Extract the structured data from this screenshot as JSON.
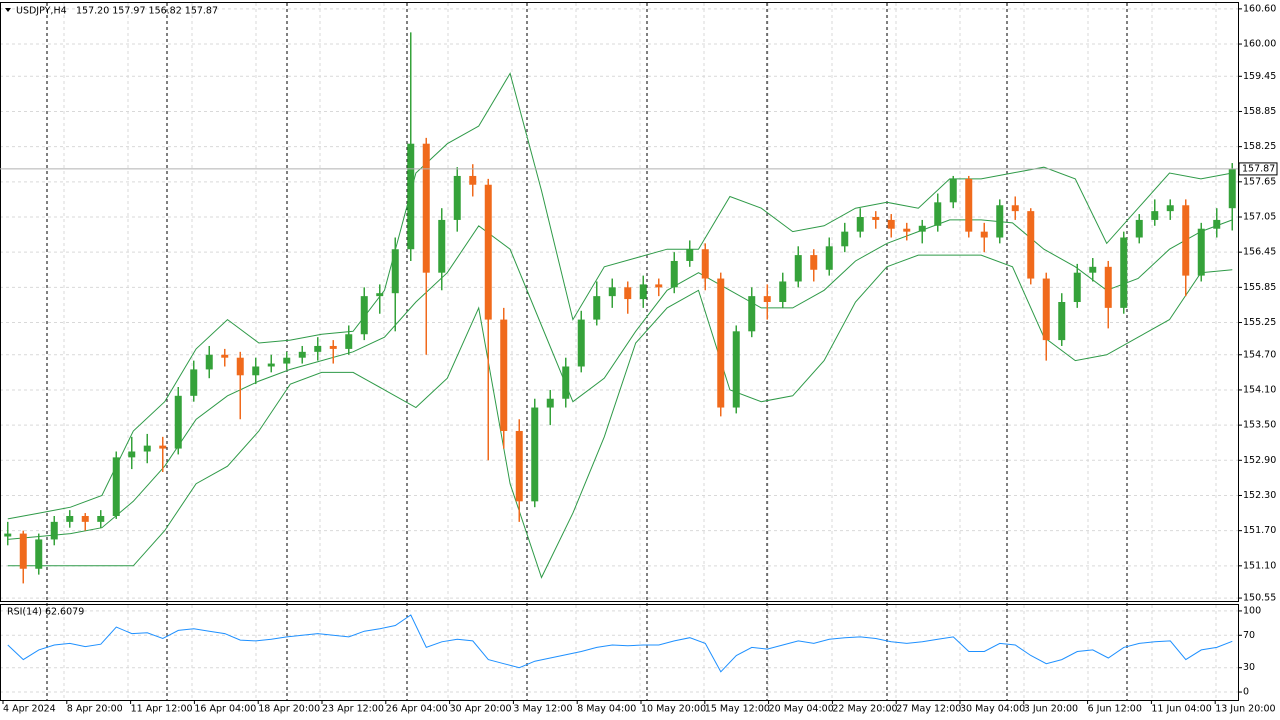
{
  "chart_data": [
    {
      "type": "candlestick",
      "title": "USDJPY,H4",
      "subtitle": "157.20 157.97 156.82 157.87",
      "bull_color": "#35a23a",
      "bear_color": "#f06a1c",
      "grid": true,
      "ylim": [
        150.5,
        160.7
      ],
      "yticks": [
        {
          "value": 160.6,
          "label": "160.60"
        },
        {
          "value": 160,
          "label": "160.00"
        },
        159.45,
        158.85,
        158.25,
        157.65,
        157.05,
        156.45,
        155.85,
        155.25,
        {
          "value": 154.7,
          "label": "154.70"
        },
        {
          "value": 154.1,
          "label": "154.10"
        },
        {
          "value": 153.5,
          "label": "153.50"
        },
        {
          "value": 152.9,
          "label": "152.90"
        },
        {
          "value": 152.3,
          "label": "152.30"
        },
        {
          "value": 151.7,
          "label": "151.70"
        },
        {
          "value": 151.1,
          "label": "151.10"
        },
        150.55
      ],
      "last_price": {
        "value": 157.87,
        "label": "157.87"
      },
      "xtick_labels": [
        "4 Apr 2024",
        "8 Apr 20:00",
        "11 Apr 12:00",
        "16 Apr 04:00",
        "18 Apr 20:00",
        "23 Apr 12:00",
        "26 Apr 04:00",
        "30 Apr 20:00",
        "3 May 12:00",
        "8 May 04:00",
        "10 May 20:00",
        "15 May 12:00",
        "20 May 04:00",
        "22 May 20:00",
        "27 May 12:00",
        "30 May 04:00",
        "3 Jun 20:00",
        "6 Jun 12:00",
        "11 Jun 04:00",
        "13 Jun 20:00"
      ],
      "ohlc": [
        [
          151.6,
          151.85,
          151.45,
          151.65
        ],
        [
          151.65,
          151.7,
          150.8,
          151.05
        ],
        [
          151.05,
          151.65,
          150.95,
          151.55
        ],
        [
          151.55,
          151.95,
          151.45,
          151.85
        ],
        [
          151.85,
          152.05,
          151.75,
          151.95
        ],
        [
          151.95,
          152.0,
          151.7,
          151.85
        ],
        [
          151.85,
          152.05,
          151.75,
          151.95
        ],
        [
          151.95,
          153.05,
          151.9,
          152.95
        ],
        [
          152.95,
          153.3,
          152.75,
          153.05
        ],
        [
          153.05,
          153.35,
          152.85,
          153.15
        ],
        [
          153.15,
          153.3,
          152.7,
          153.1
        ],
        [
          153.1,
          154.15,
          153.0,
          154.0
        ],
        [
          154.0,
          154.6,
          153.9,
          154.45
        ],
        [
          154.45,
          154.85,
          154.3,
          154.7
        ],
        [
          154.7,
          154.8,
          154.5,
          154.65
        ],
        [
          154.65,
          154.75,
          153.6,
          154.35
        ],
        [
          154.35,
          154.65,
          154.2,
          154.5
        ],
        [
          154.5,
          154.7,
          154.4,
          154.55
        ],
        [
          154.55,
          154.75,
          154.45,
          154.65
        ],
        [
          154.65,
          154.85,
          154.55,
          154.75
        ],
        [
          154.75,
          155.0,
          154.6,
          154.85
        ],
        [
          154.85,
          154.95,
          154.55,
          154.8
        ],
        [
          154.8,
          155.2,
          154.7,
          155.05
        ],
        [
          155.05,
          155.85,
          154.95,
          155.7
        ],
        [
          155.7,
          155.9,
          155.4,
          155.75
        ],
        [
          155.75,
          156.7,
          155.1,
          156.5
        ],
        [
          156.5,
          160.2,
          156.3,
          158.3
        ],
        [
          158.3,
          158.4,
          154.7,
          156.1
        ],
        [
          156.1,
          157.2,
          155.8,
          157.0
        ],
        [
          157.0,
          157.9,
          156.8,
          157.75
        ],
        [
          157.75,
          157.95,
          157.4,
          157.6
        ],
        [
          157.6,
          157.7,
          152.9,
          155.3
        ],
        [
          155.3,
          155.5,
          153.1,
          153.4
        ],
        [
          153.4,
          153.6,
          151.85,
          152.2
        ],
        [
          152.2,
          153.95,
          152.1,
          153.8
        ],
        [
          153.8,
          154.1,
          153.5,
          153.95
        ],
        [
          153.95,
          154.65,
          153.8,
          154.5
        ],
        [
          154.5,
          155.45,
          154.4,
          155.3
        ],
        [
          155.3,
          155.95,
          155.2,
          155.7
        ],
        [
          155.7,
          156.0,
          155.5,
          155.85
        ],
        [
          155.85,
          155.95,
          155.4,
          155.65
        ],
        [
          155.65,
          156.05,
          155.5,
          155.9
        ],
        [
          155.9,
          156.0,
          155.7,
          155.85
        ],
        [
          155.85,
          156.45,
          155.75,
          156.3
        ],
        [
          156.3,
          156.65,
          156.2,
          156.5
        ],
        [
          156.5,
          156.6,
          155.8,
          156.0
        ],
        [
          156.0,
          156.1,
          153.65,
          153.8
        ],
        [
          153.8,
          155.2,
          153.7,
          155.1
        ],
        [
          155.1,
          155.85,
          155.0,
          155.7
        ],
        [
          155.7,
          155.9,
          155.3,
          155.6
        ],
        [
          155.6,
          156.1,
          155.5,
          155.95
        ],
        [
          155.95,
          156.55,
          155.85,
          156.4
        ],
        [
          156.4,
          156.5,
          155.95,
          156.15
        ],
        [
          156.15,
          156.7,
          156.05,
          156.55
        ],
        [
          156.55,
          156.95,
          156.45,
          156.8
        ],
        [
          156.8,
          157.2,
          156.7,
          157.05
        ],
        [
          157.05,
          157.15,
          156.85,
          157.0
        ],
        [
          157.0,
          157.1,
          156.7,
          156.85
        ],
        [
          156.85,
          156.95,
          156.65,
          156.8
        ],
        [
          156.8,
          157.0,
          156.6,
          156.9
        ],
        [
          156.9,
          157.45,
          156.8,
          157.3
        ],
        [
          157.3,
          157.75,
          157.2,
          157.7
        ],
        [
          157.7,
          157.75,
          156.7,
          156.8
        ],
        [
          156.8,
          156.95,
          156.45,
          156.7
        ],
        [
          156.7,
          157.35,
          156.6,
          157.25
        ],
        [
          157.25,
          157.4,
          157.0,
          157.15
        ],
        [
          157.15,
          157.2,
          155.9,
          156.0
        ],
        [
          156.0,
          156.1,
          154.6,
          154.95
        ],
        [
          154.95,
          155.75,
          154.85,
          155.6
        ],
        [
          155.6,
          156.25,
          155.5,
          156.1
        ],
        [
          156.1,
          156.35,
          155.95,
          156.2
        ],
        [
          156.2,
          156.3,
          155.15,
          155.5
        ],
        [
          155.5,
          156.8,
          155.4,
          156.7
        ],
        [
          156.7,
          157.1,
          156.6,
          157.0
        ],
        [
          157.0,
          157.35,
          156.9,
          157.15
        ],
        [
          157.15,
          157.35,
          157.0,
          157.25
        ],
        [
          157.25,
          157.35,
          155.7,
          156.05
        ],
        [
          156.05,
          156.95,
          155.95,
          156.85
        ],
        [
          156.85,
          157.2,
          156.7,
          157.0
        ],
        [
          157.2,
          157.97,
          156.82,
          157.87
        ]
      ],
      "bands": [
        {
          "color": "#2f9a48",
          "values": [
            151.9,
            152.0,
            152.1,
            152.3,
            153.4,
            153.9,
            154.8,
            155.3,
            154.9,
            154.95,
            155.05,
            155.1,
            155.8,
            157.8,
            158.3,
            158.6,
            159.5,
            157.5,
            155.3,
            156.2,
            156.35,
            156.5,
            156.5,
            157.4,
            157.2,
            156.8,
            156.9,
            157.2,
            157.3,
            157.2,
            157.7,
            157.7,
            157.8,
            157.9,
            157.7,
            156.6,
            157.2,
            157.8,
            157.7,
            157.8
          ]
        },
        {
          "color": "#2f9a48",
          "values": [
            151.55,
            151.6,
            151.65,
            151.75,
            152.2,
            152.8,
            153.6,
            154.0,
            154.25,
            154.45,
            154.6,
            154.75,
            155.0,
            155.6,
            156.1,
            156.9,
            156.5,
            155.2,
            153.9,
            154.3,
            155.1,
            155.8,
            156.1,
            155.8,
            155.5,
            155.5,
            155.8,
            156.3,
            156.6,
            156.8,
            157.0,
            157.0,
            156.95,
            156.5,
            156.2,
            155.8,
            156.0,
            156.5,
            156.8,
            157.0
          ]
        },
        {
          "color": "#2f9a48",
          "values": [
            151.1,
            151.1,
            151.1,
            151.1,
            151.1,
            151.7,
            152.5,
            152.8,
            153.4,
            154.2,
            154.4,
            154.4,
            154.1,
            153.8,
            154.3,
            155.5,
            152.5,
            150.9,
            152.0,
            153.3,
            154.9,
            155.5,
            155.8,
            154.1,
            153.9,
            154.0,
            154.6,
            155.6,
            156.2,
            156.4,
            156.4,
            156.4,
            156.2,
            155.0,
            154.6,
            154.7,
            155.0,
            155.3,
            156.1,
            156.15
          ]
        }
      ]
    },
    {
      "type": "line",
      "title": "RSI(14) 62.6079",
      "color": "#1e90ff",
      "grid": true,
      "ylim": [
        -9.8,
        107.3
      ],
      "yticks": [
        100,
        70,
        30,
        0
      ],
      "values": [
        58,
        40,
        52,
        58,
        60,
        56,
        59,
        80,
        72,
        73,
        66,
        76,
        78,
        75,
        72,
        64,
        63,
        65,
        68,
        70,
        72,
        70,
        68,
        75,
        78,
        82,
        95,
        55,
        62,
        65,
        63,
        40,
        35,
        30,
        38,
        42,
        46,
        50,
        55,
        58,
        57,
        58,
        58,
        63,
        67,
        60,
        25,
        45,
        55,
        53,
        58,
        63,
        60,
        65,
        67,
        68,
        66,
        62,
        60,
        62,
        65,
        68,
        50,
        50,
        60,
        58,
        45,
        35,
        40,
        50,
        52,
        42,
        55,
        60,
        62,
        63,
        40,
        52,
        55,
        62.6079
      ]
    }
  ]
}
